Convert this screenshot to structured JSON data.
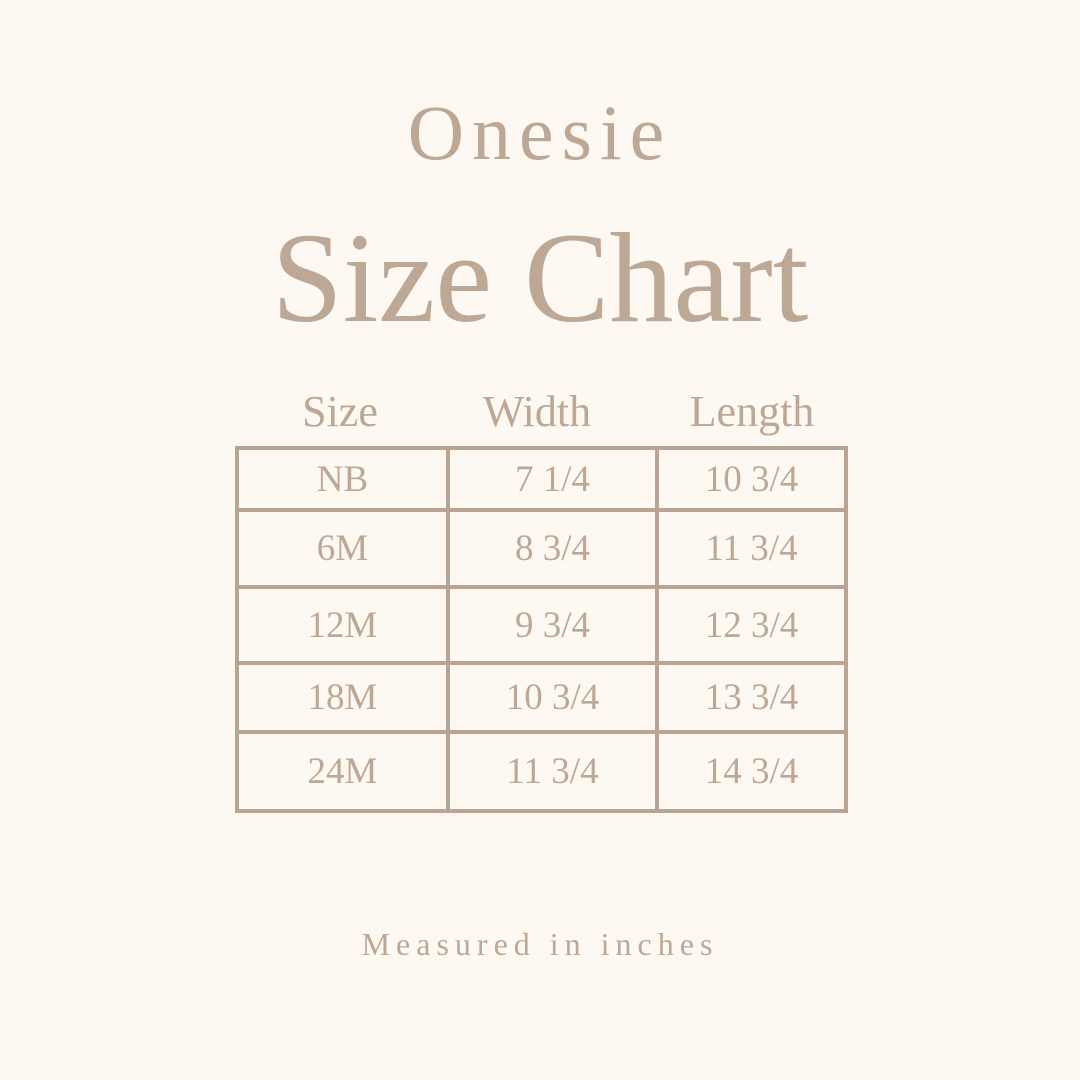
{
  "subtitle": "Onesie",
  "title": "Size Chart",
  "table": {
    "headers": [
      "Size",
      "Width",
      "Length"
    ],
    "rows": [
      [
        "NB",
        "7 1/4",
        "10 3/4"
      ],
      [
        "6M",
        "8 3/4",
        "11 3/4"
      ],
      [
        "12M",
        "9 3/4",
        "12 3/4"
      ],
      [
        "18M",
        "10 3/4",
        "13 3/4"
      ],
      [
        "24M",
        "11 3/4",
        "14 3/4"
      ]
    ]
  },
  "footnote": "Measured in inches",
  "colors": {
    "background": "#fdf8f2",
    "text": "#bda895",
    "lines": "#b9a493"
  }
}
